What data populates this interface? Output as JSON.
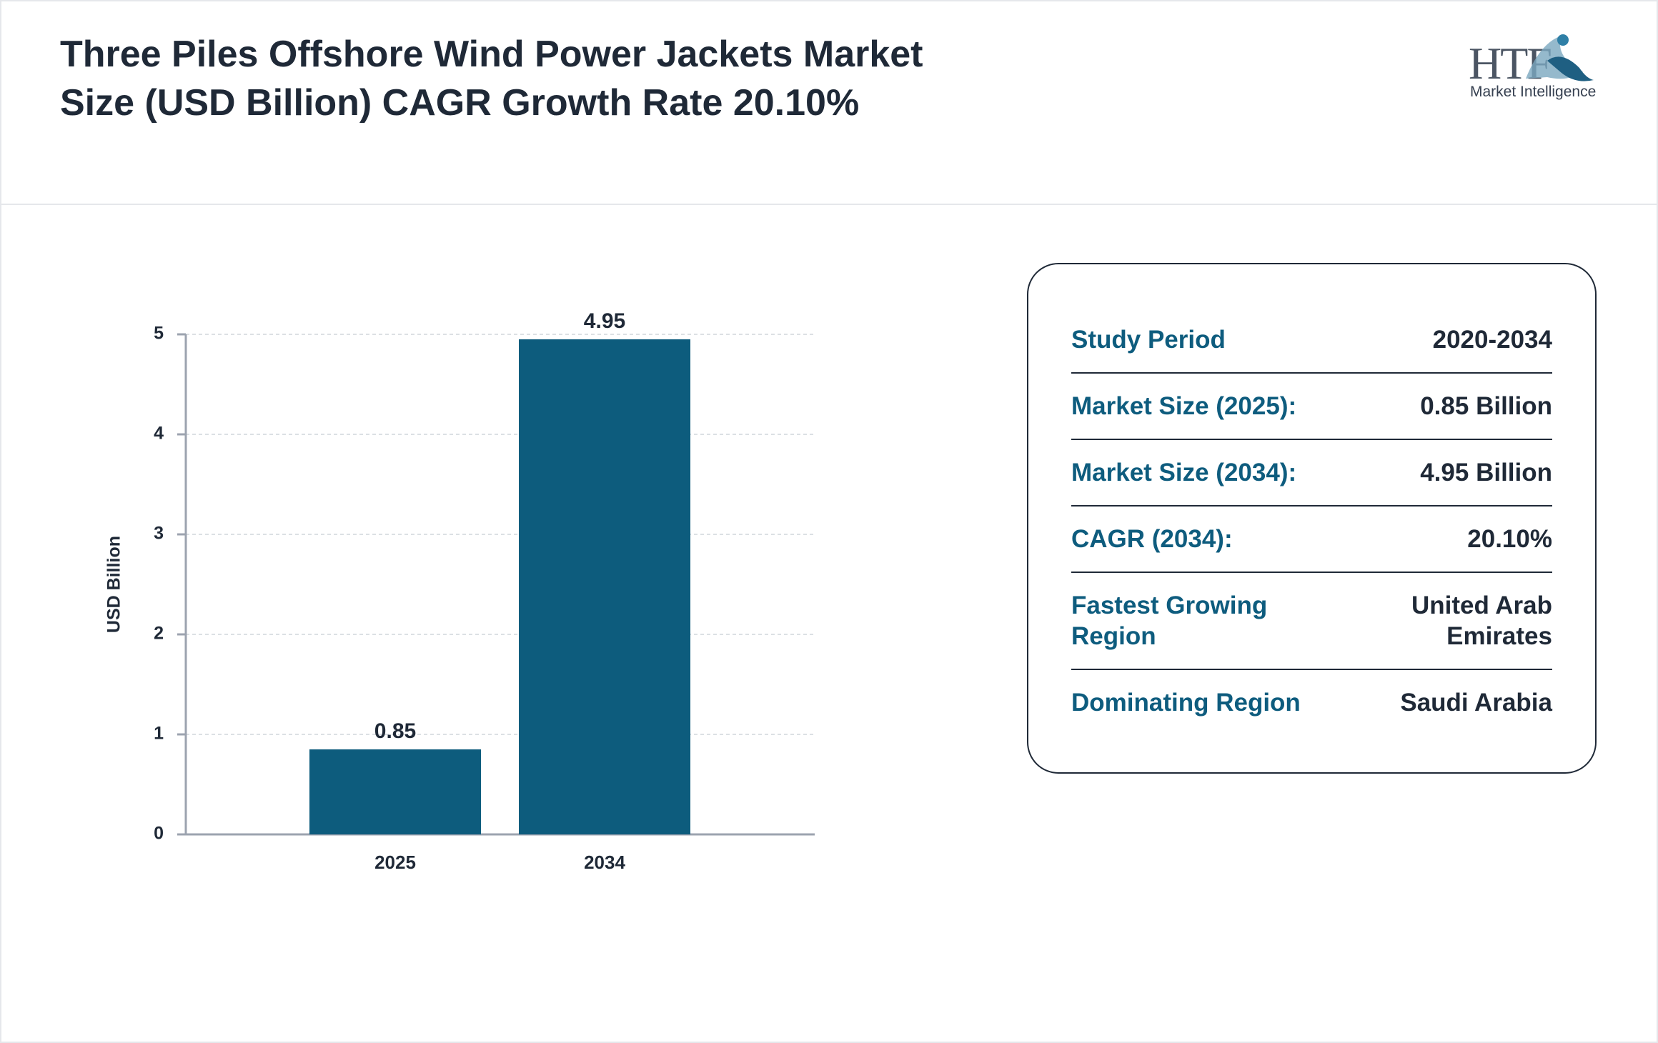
{
  "logo": {
    "name": "HTF",
    "tagline": "Market Intelligence"
  },
  "chart_data": {
    "type": "bar",
    "title": "Three Piles Offshore Wind Power Jackets Market Size (USD Billion) CAGR Growth Rate 20.10%",
    "y_label": "USD Billion",
    "categories": [
      "2025",
      "2034"
    ],
    "values": [
      0.85,
      4.95
    ],
    "color": "#0d5c7d",
    "ylim": [
      0,
      5
    ],
    "yticks": [
      0,
      1,
      2,
      3,
      4,
      5
    ],
    "grid": true
  },
  "summary": {
    "rows": [
      [
        "Study Period",
        "2020-2034"
      ],
      [
        "Market Size (2025):",
        "0.85 Billion"
      ],
      [
        "Market Size (2034):",
        "4.95 Billion"
      ],
      [
        "CAGR (2034):",
        "20.10%"
      ],
      [
        "Fastest Growing Region",
        "United Arab Emirates"
      ],
      [
        "Dominating Region",
        "Saudi Arabia"
      ]
    ]
  }
}
